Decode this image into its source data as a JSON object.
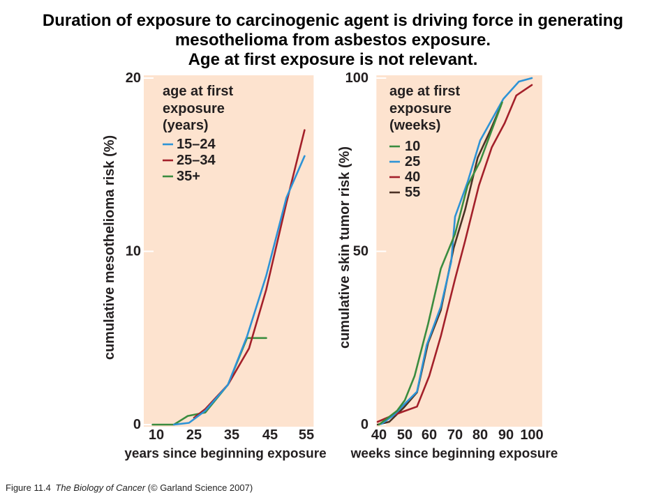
{
  "title": {
    "line1": "Duration of exposure to carcinogenic agent is driving force in generating",
    "line2": "mesothelioma from asbestos exposure.",
    "line3": "Age at first exposure is not relevant."
  },
  "colors": {
    "plot_background": "#fde3cf",
    "chart_text": "#231f20",
    "tick_mark": "#ffffff"
  },
  "chart_data": [
    {
      "type": "line",
      "xlabel": "years since beginning exposure",
      "ylabel": "cumulative mesothelioma risk (%)",
      "x_ticks": [
        10,
        25,
        35,
        45,
        55
      ],
      "y_ticks": [
        0,
        10,
        20
      ],
      "xlim": [
        5,
        57
      ],
      "ylim": [
        0,
        20
      ],
      "grid": false,
      "legend": {
        "placement": "top-left",
        "title": [
          "age at first",
          "exposure",
          "(years)"
        ]
      },
      "series": [
        {
          "name": "15–24",
          "color": "#2d93d6",
          "x": [
            17,
            23,
            28,
            34,
            39,
            44,
            49.5,
            54.5
          ],
          "y": [
            0,
            0.1,
            0.8,
            2.3,
            5.1,
            8.6,
            13.1,
            15.5
          ]
        },
        {
          "name": "25–34",
          "color": "#a3202a",
          "x": [
            25,
            28,
            34,
            39.5,
            44,
            49.5,
            54.5
          ],
          "y": [
            0.4,
            0.9,
            2.3,
            4.4,
            7.8,
            12.8,
            17
          ]
        },
        {
          "name": "35+",
          "color": "#3a8c3f",
          "x": [
            8.5,
            17,
            22.5,
            28,
            34,
            39,
            44
          ],
          "y": [
            0,
            0,
            0.5,
            0.7,
            2.3,
            5,
            5
          ]
        }
      ]
    },
    {
      "type": "line",
      "xlabel": "weeks since beginning exposure",
      "ylabel": "cumulative skin tumor risk (%)",
      "x_ticks": [
        40,
        50,
        60,
        70,
        80,
        90,
        100
      ],
      "y_ticks": [
        0,
        50,
        100
      ],
      "xlim": [
        39,
        104
      ],
      "ylim": [
        0,
        100
      ],
      "grid": false,
      "legend": {
        "placement": "top-left",
        "title": [
          "age at first",
          "exposure",
          "(weeks)"
        ]
      },
      "series": [
        {
          "name": "10",
          "color": "#3a8c3f",
          "x": [
            40,
            43.5,
            47,
            50,
            54,
            59.5,
            64.5,
            70,
            75,
            80,
            88.5
          ],
          "y": [
            0,
            2,
            4,
            7,
            14,
            29,
            45,
            55,
            69,
            76,
            93
          ]
        },
        {
          "name": "25",
          "color": "#2d93d6",
          "x": [
            41,
            45.5,
            50,
            55,
            59,
            64.5,
            68.5,
            70,
            75,
            80,
            84.5,
            89,
            95,
            100
          ],
          "y": [
            0.2,
            2.6,
            6,
            9.5,
            23,
            34,
            47,
            60,
            70,
            82,
            88,
            94,
            99,
            100
          ]
        },
        {
          "name": "40",
          "color": "#a3202a",
          "x": [
            39.5,
            44.5,
            49.5,
            55,
            60,
            64.5,
            70,
            74,
            79.5,
            84.5,
            89.5,
            94,
            100
          ],
          "y": [
            0.8,
            2.4,
            3.8,
            5.2,
            14,
            25.5,
            42,
            53,
            69,
            80,
            87,
            95,
            98
          ]
        },
        {
          "name": "55",
          "color": "#4b3225",
          "x": [
            39.5,
            44,
            49.5,
            55,
            59.5,
            64.5,
            69.5,
            74,
            79,
            84,
            88
          ],
          "y": [
            0,
            0.8,
            4.8,
            9.3,
            23.5,
            33,
            51,
            62,
            77,
            85,
            92
          ]
        }
      ]
    }
  ],
  "caption": {
    "figure": "Figure 11.4",
    "book": "The Biology of Cancer",
    "credit": "(© Garland Science 2007)"
  }
}
